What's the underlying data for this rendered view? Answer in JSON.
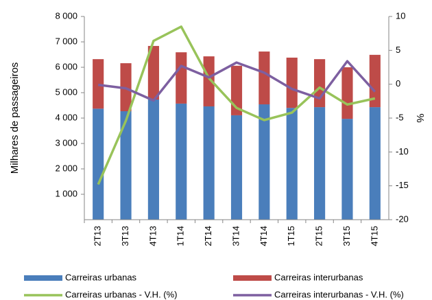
{
  "chart_data": {
    "type": "bar-line",
    "y_label": "Milhares de passageiros",
    "y2_label": "%",
    "categories": [
      "2T13",
      "3T13",
      "4T13",
      "1T14",
      "2T14",
      "3T14",
      "4T14",
      "1T15",
      "2T15",
      "3T15",
      "4T15"
    ],
    "series": [
      {
        "name": "Carreiras urbanas",
        "type": "bar",
        "color": "#4a7ebb",
        "values": [
          4370,
          4270,
          4730,
          4570,
          4460,
          4110,
          4540,
          4400,
          4430,
          3970,
          4430
        ]
      },
      {
        "name": "Carreiras interurbanas",
        "type": "bar",
        "color": "#be4b48",
        "values": [
          1950,
          1890,
          2110,
          2020,
          1970,
          1950,
          2080,
          1980,
          1890,
          2030,
          2060
        ]
      },
      {
        "name": "Carreiras urbanas - V.H. (%)",
        "type": "line",
        "axis": "y2",
        "color": "#98c35a",
        "values": [
          -14.8,
          -5.4,
          6.4,
          8.5,
          0.9,
          -3.5,
          -5.3,
          -4.2,
          -0.5,
          -3.0,
          -2.1
        ]
      },
      {
        "name": "Carreiras interurbanas - V.H. (%)",
        "type": "line",
        "axis": "y2",
        "color": "#7d5fa0",
        "values": [
          -0.1,
          -0.6,
          -2.4,
          2.7,
          1.0,
          3.2,
          1.7,
          -0.7,
          -2.1,
          3.4,
          -1.1
        ]
      }
    ],
    "ylim": [
      0,
      8000
    ],
    "yticks": [
      {
        "value": 1000,
        "label": "1 000"
      },
      {
        "value": 2000,
        "label": "2 000"
      },
      {
        "value": 3000,
        "label": "3 000"
      },
      {
        "value": 4000,
        "label": "4 000"
      },
      {
        "value": 5000,
        "label": "5 000"
      },
      {
        "value": 6000,
        "label": "6 000"
      },
      {
        "value": 7000,
        "label": "7 000"
      },
      {
        "value": 8000,
        "label": "8 000"
      }
    ],
    "y2lim": [
      -20,
      10
    ],
    "y2ticks": [
      -20,
      -15,
      -10,
      -5,
      0,
      5,
      10
    ],
    "grid": false
  }
}
